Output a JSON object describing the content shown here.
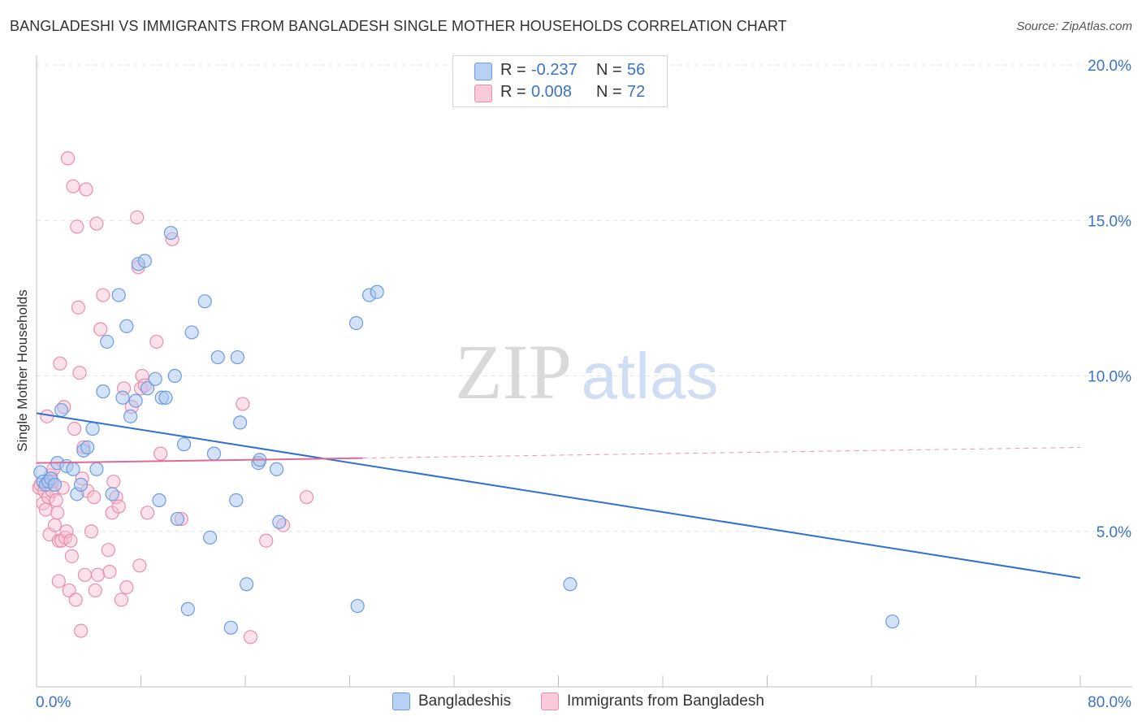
{
  "title": "BANGLADESHI VS IMMIGRANTS FROM BANGLADESH SINGLE MOTHER HOUSEHOLDS CORRELATION CHART",
  "source": "Source: ZipAtlas.com",
  "watermark": {
    "zip": "ZIP",
    "atlas": "atlas"
  },
  "legend": {
    "r_label": "R =",
    "n_label": "N =",
    "rows": [
      {
        "r": "-0.237",
        "n": "56"
      },
      {
        "r": "0.008",
        "n": "72"
      }
    ]
  },
  "bottom_legend": [
    "Bangladeshis",
    "Immigrants from Bangladesh"
  ],
  "colors": {
    "blue_fill": "#a9c6ef",
    "blue_stroke": "#6d9be0",
    "blue_line": "#2f6fd1",
    "pink_fill": "#f6bfd0",
    "pink_stroke": "#ea8eab",
    "pink_line": "#e06a93",
    "axis_label": "#3a73c9",
    "grid": "#e2e2e2"
  },
  "chart_data": {
    "type": "scatter",
    "title": "BANGLADESHI VS IMMIGRANTS FROM BANGLADESH SINGLE MOTHER HOUSEHOLDS CORRELATION CHART",
    "xlabel": "",
    "ylabel": "Single Mother Households",
    "xlim": [
      0,
      80
    ],
    "ylim": [
      0,
      20
    ],
    "x_tick_labels": [
      "0.0%",
      "80.0%"
    ],
    "y_ticks": [
      5,
      10,
      15,
      20
    ],
    "y_tick_labels": [
      "5.0%",
      "10.0%",
      "15.0%",
      "20.0%"
    ],
    "grid": true,
    "legend_position": "top-center",
    "series": [
      {
        "name": "Bangladeshis",
        "color": "#a9c6ef",
        "points": [
          [
            0.3,
            6.9
          ],
          [
            0.5,
            6.6
          ],
          [
            0.7,
            6.5
          ],
          [
            0.9,
            6.6
          ],
          [
            1.1,
            6.7
          ],
          [
            1.4,
            6.5
          ],
          [
            1.6,
            7.2
          ],
          [
            1.9,
            8.9
          ],
          [
            2.3,
            7.1
          ],
          [
            2.8,
            7.0
          ],
          [
            3.1,
            6.2
          ],
          [
            3.4,
            6.5
          ],
          [
            3.6,
            7.6
          ],
          [
            3.9,
            7.7
          ],
          [
            4.3,
            8.3
          ],
          [
            4.6,
            7.0
          ],
          [
            5.1,
            9.5
          ],
          [
            5.4,
            11.1
          ],
          [
            5.8,
            6.2
          ],
          [
            6.3,
            12.6
          ],
          [
            6.6,
            9.3
          ],
          [
            6.9,
            11.6
          ],
          [
            7.2,
            8.7
          ],
          [
            7.6,
            9.2
          ],
          [
            7.8,
            13.6
          ],
          [
            8.3,
            13.7
          ],
          [
            8.5,
            9.6
          ],
          [
            9.1,
            9.9
          ],
          [
            9.4,
            6.0
          ],
          [
            9.6,
            9.3
          ],
          [
            9.9,
            9.3
          ],
          [
            10.3,
            14.6
          ],
          [
            10.6,
            10.0
          ],
          [
            10.8,
            5.4
          ],
          [
            11.3,
            7.8
          ],
          [
            11.6,
            2.5
          ],
          [
            11.9,
            11.4
          ],
          [
            12.9,
            12.4
          ],
          [
            13.3,
            4.8
          ],
          [
            13.6,
            7.5
          ],
          [
            13.9,
            10.6
          ],
          [
            14.9,
            1.9
          ],
          [
            15.3,
            6.0
          ],
          [
            15.4,
            10.6
          ],
          [
            15.6,
            8.5
          ],
          [
            16.1,
            3.3
          ],
          [
            17.0,
            7.2
          ],
          [
            17.1,
            7.3
          ],
          [
            18.4,
            7.0
          ],
          [
            18.6,
            5.3
          ],
          [
            24.5,
            11.7
          ],
          [
            24.6,
            2.6
          ],
          [
            25.5,
            12.6
          ],
          [
            26.1,
            12.7
          ],
          [
            40.9,
            3.3
          ],
          [
            65.6,
            2.1
          ]
        ]
      },
      {
        "name": "Immigrants from Bangladesh",
        "color": "#f6bfd0",
        "points": [
          [
            0.2,
            6.4
          ],
          [
            0.3,
            6.5
          ],
          [
            0.5,
            5.9
          ],
          [
            0.6,
            6.3
          ],
          [
            0.7,
            5.7
          ],
          [
            0.8,
            8.7
          ],
          [
            0.9,
            6.1
          ],
          [
            1.0,
            4.9
          ],
          [
            1.1,
            6.8
          ],
          [
            1.2,
            6.3
          ],
          [
            1.3,
            7.0
          ],
          [
            1.4,
            5.2
          ],
          [
            1.5,
            6.0
          ],
          [
            1.6,
            5.6
          ],
          [
            1.7,
            4.7
          ],
          [
            1.7,
            3.4
          ],
          [
            1.8,
            10.4
          ],
          [
            1.9,
            4.7
          ],
          [
            2.0,
            6.4
          ],
          [
            2.1,
            9.0
          ],
          [
            2.2,
            4.8
          ],
          [
            2.3,
            5.0
          ],
          [
            2.4,
            17.0
          ],
          [
            2.5,
            3.1
          ],
          [
            2.6,
            4.7
          ],
          [
            2.7,
            4.2
          ],
          [
            2.8,
            16.1
          ],
          [
            2.9,
            8.3
          ],
          [
            3.0,
            2.8
          ],
          [
            3.1,
            14.8
          ],
          [
            3.2,
            12.2
          ],
          [
            3.3,
            10.1
          ],
          [
            3.4,
            1.8
          ],
          [
            3.5,
            6.7
          ],
          [
            3.6,
            7.7
          ],
          [
            3.7,
            3.6
          ],
          [
            3.8,
            16.0
          ],
          [
            3.9,
            6.3
          ],
          [
            4.2,
            5.0
          ],
          [
            4.4,
            6.1
          ],
          [
            4.5,
            3.1
          ],
          [
            4.6,
            14.9
          ],
          [
            4.7,
            3.6
          ],
          [
            4.9,
            11.5
          ],
          [
            5.1,
            12.6
          ],
          [
            5.5,
            4.4
          ],
          [
            5.6,
            3.7
          ],
          [
            5.8,
            5.6
          ],
          [
            5.9,
            6.6
          ],
          [
            6.1,
            6.1
          ],
          [
            6.3,
            5.8
          ],
          [
            6.5,
            2.8
          ],
          [
            6.7,
            9.6
          ],
          [
            6.9,
            3.2
          ],
          [
            7.3,
            9.0
          ],
          [
            7.7,
            15.1
          ],
          [
            7.8,
            13.5
          ],
          [
            7.9,
            3.9
          ],
          [
            8.0,
            9.6
          ],
          [
            8.1,
            10.0
          ],
          [
            8.3,
            9.7
          ],
          [
            8.5,
            5.6
          ],
          [
            9.2,
            11.1
          ],
          [
            9.5,
            7.5
          ],
          [
            10.4,
            14.4
          ],
          [
            11.1,
            5.4
          ],
          [
            15.8,
            9.1
          ],
          [
            16.4,
            1.6
          ],
          [
            17.6,
            4.7
          ],
          [
            18.9,
            5.2
          ],
          [
            20.7,
            6.1
          ],
          [
            1.2,
            6.6
          ]
        ]
      }
    ],
    "trend_lines": [
      {
        "name": "Bangladeshis",
        "x": [
          0,
          80
        ],
        "y": [
          8.8,
          3.5
        ],
        "dashed_from": null
      },
      {
        "name": "Immigrants from Bangladesh",
        "x": [
          0,
          80
        ],
        "y": [
          7.2,
          7.7
        ],
        "solid_until": 25
      }
    ]
  }
}
